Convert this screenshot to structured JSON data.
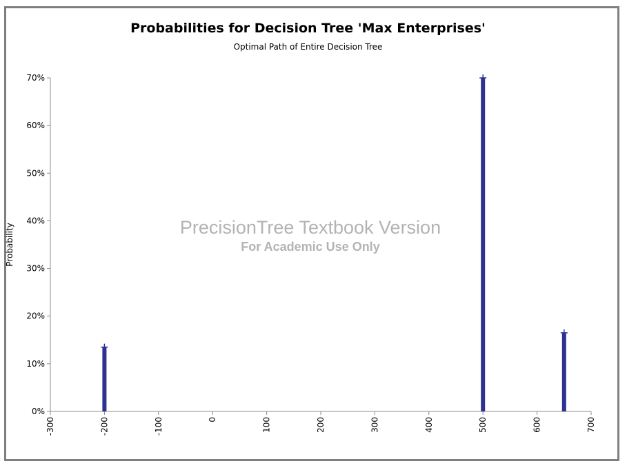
{
  "chart_data": {
    "type": "bar",
    "title": "Probabilities for Decision Tree 'Max Enterprises'",
    "subtitle": "Optimal Path of Entire Decision Tree",
    "xlabel": "",
    "ylabel": "Probability",
    "xlim": [
      -300,
      700
    ],
    "ylim": [
      0,
      0.7
    ],
    "x_ticks": [
      -300,
      -200,
      -100,
      0,
      100,
      200,
      300,
      400,
      500,
      600,
      700
    ],
    "x_tick_labels": [
      "-300",
      "-200",
      "-100",
      "0",
      "100",
      "200",
      "300",
      "400",
      "500",
      "600",
      "700"
    ],
    "y_ticks": [
      0,
      0.1,
      0.2,
      0.3,
      0.4,
      0.5,
      0.6,
      0.7
    ],
    "y_tick_labels": [
      "0%",
      "10%",
      "20%",
      "30%",
      "40%",
      "50%",
      "60%",
      "70%"
    ],
    "grid": false,
    "legend": "none",
    "bar_color": "#2e3192",
    "points": [
      {
        "x": -200,
        "y": 0.135
      },
      {
        "x": 500,
        "y": 0.7
      },
      {
        "x": 650,
        "y": 0.165
      }
    ]
  },
  "watermark": {
    "line1": "PrecisionTree Textbook Version",
    "line2": "For Academic Use Only"
  }
}
